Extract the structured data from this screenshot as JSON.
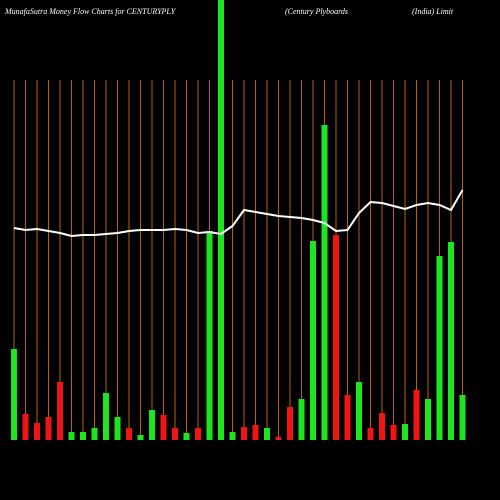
{
  "chart_data": {
    "type": "bar",
    "title": "MunafaSutra  Money Flow  Charts for CENTURYPLY",
    "subtitle": "(Century Plyboards",
    "subtitle2": "(India) Limit",
    "categories": [
      null,
      null,
      null,
      null,
      null,
      null,
      null,
      null,
      null,
      null,
      null,
      null,
      null,
      null,
      null,
      null,
      null,
      null,
      null,
      null,
      null,
      null,
      null,
      null,
      null,
      null,
      null,
      null,
      null,
      null,
      null,
      null,
      null,
      null,
      null,
      null,
      null,
      null,
      null,
      null
    ],
    "values": [
      91,
      26,
      17,
      23,
      58,
      8,
      8,
      12,
      47,
      23,
      12,
      5,
      30,
      25,
      12,
      7,
      12,
      209,
      440,
      8,
      13,
      15,
      12,
      3,
      33,
      41,
      199,
      315,
      205,
      45,
      58,
      12,
      27,
      15,
      16,
      50,
      41,
      184,
      198,
      45
    ],
    "colors": [
      "#1ee61e",
      "#f01414",
      "#f01414",
      "#f01414",
      "#f01414",
      "#1ee61e",
      "#1ee61e",
      "#1ee61e",
      "#1ee61e",
      "#1ee61e",
      "#f01414",
      "#1ee61e",
      "#1ee61e",
      "#f01414",
      "#f01414",
      "#1ee61e",
      "#f01414",
      "#1ee61e",
      "#1ee61e",
      "#1ee61e",
      "#f01414",
      "#f01414",
      "#1ee61e",
      "#f01414",
      "#f01414",
      "#1ee61e",
      "#1ee61e",
      "#1ee61e",
      "#f01414",
      "#f01414",
      "#1ee61e",
      "#f01414",
      "#f01414",
      "#f01414",
      "#1ee61e",
      "#f01414",
      "#1ee61e",
      "#1ee61e",
      "#1ee61e",
      "#1ee61e"
    ],
    "line": {
      "color": "#ffffff",
      "values": [
        212,
        210,
        211,
        209,
        207,
        204,
        205,
        205,
        206,
        207,
        209,
        210,
        210,
        210,
        211,
        210,
        207,
        208,
        206,
        214,
        230,
        228,
        226,
        224,
        223,
        222,
        220,
        217,
        209,
        210,
        227,
        238,
        237,
        234,
        231,
        235,
        237,
        235,
        230,
        250
      ]
    },
    "ylim": [
      0,
      440
    ],
    "gridline_color": "#b8620a"
  }
}
